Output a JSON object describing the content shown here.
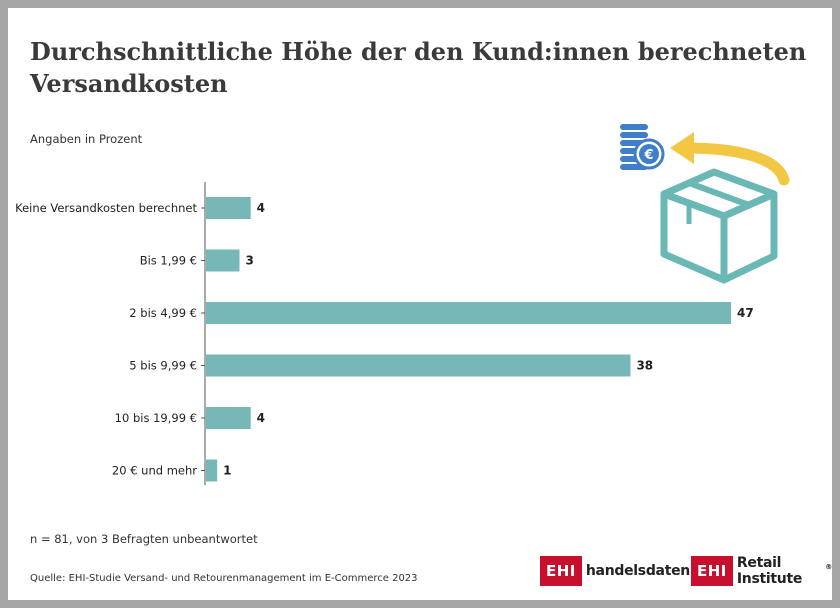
{
  "header": {
    "title": "Durchschnittliche Höhe der den Kund:innen berechneten Versandkosten",
    "subtitle": "Angaben in Prozent"
  },
  "chart_data": {
    "type": "bar",
    "orientation": "horizontal",
    "title": "Durchschnittliche Höhe der den Kund:innen berechneten Versandkosten",
    "subtitle": "Angaben in Prozent",
    "categories": [
      "Keine Versandkosten berechnet",
      "Bis 1,99 €",
      "2 bis 4,99 €",
      "5 bis 9,99 €",
      "10 bis 19,99 €",
      "20 € und mehr"
    ],
    "values": [
      4,
      3,
      47,
      38,
      4,
      1
    ],
    "xlim": [
      0,
      47
    ],
    "grid": false,
    "legend": "none",
    "colors": {
      "bar": "#76b8b8",
      "axis": "#555555",
      "label": "#222222"
    }
  },
  "footer": {
    "note": "n = 81, von 3 Befragten unbeantwortet",
    "source": "Quelle: EHI-Studie Versand- und Retourenmanagement im E-Commerce 2023"
  },
  "logos": {
    "left": {
      "badge": "EHI",
      "text": "handelsdaten.de"
    },
    "right": {
      "badge": "EHI",
      "text": "Retail Institute",
      "mark": "®"
    }
  },
  "illustration": {
    "icons": [
      "euro-coin-stack-icon",
      "return-arrow-icon",
      "package-box-icon"
    ],
    "colors": {
      "coins": "#3f7fc9",
      "arrow": "#f2c744",
      "box": "#6ab8b6"
    }
  }
}
